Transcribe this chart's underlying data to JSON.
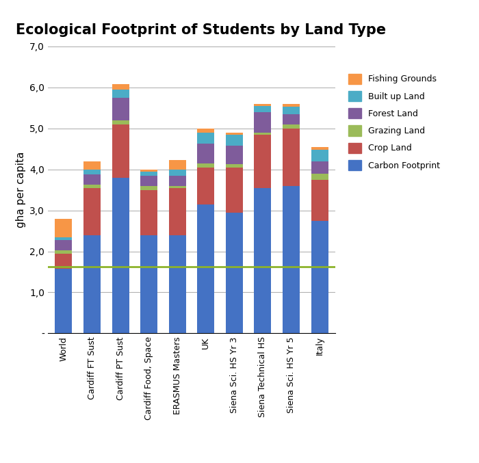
{
  "title": "Ecological Footprint of Students by Land Type",
  "ylabel": "gha per capita",
  "categories": [
    "World",
    "Cardiff FT Sust",
    "Cardiff PT Sust",
    "Cardiff Food, Space",
    "ERASMUS Masters",
    "UK",
    "Siena Sci. HS Yr 3",
    "Siena Technical HS",
    "Siena Sci. HS Yr 5",
    "Italy"
  ],
  "series": {
    "Carbon Footprint": [
      1.58,
      2.4,
      3.8,
      2.4,
      2.4,
      3.15,
      2.95,
      3.55,
      3.6,
      2.75
    ],
    "Crop Land": [
      0.37,
      1.15,
      1.3,
      1.1,
      1.15,
      0.9,
      1.1,
      1.3,
      1.4,
      1.0
    ],
    "Grazing Land": [
      0.07,
      0.07,
      0.1,
      0.1,
      0.05,
      0.1,
      0.08,
      0.05,
      0.1,
      0.15
    ],
    "Forest Land": [
      0.25,
      0.25,
      0.55,
      0.25,
      0.25,
      0.48,
      0.45,
      0.5,
      0.25,
      0.3
    ],
    "Built up Land": [
      0.08,
      0.13,
      0.2,
      0.1,
      0.15,
      0.27,
      0.27,
      0.15,
      0.18,
      0.27
    ],
    "Fishing Grounds": [
      0.45,
      0.2,
      0.12,
      0.05,
      0.22,
      0.1,
      0.05,
      0.05,
      0.06,
      0.08
    ]
  },
  "colors": {
    "Carbon Footprint": "#4472C4",
    "Crop Land": "#C0504D",
    "Grazing Land": "#9BBB59",
    "Forest Land": "#7F5C9B",
    "Built up Land": "#4BACC6",
    "Fishing Grounds": "#F79646"
  },
  "ylim": [
    0,
    7.0
  ],
  "yticks": [
    0.0,
    1.0,
    2.0,
    3.0,
    4.0,
    5.0,
    6.0,
    7.0
  ],
  "ytick_labels": [
    "-",
    "1,0",
    "2,0",
    "3,0",
    "4,0",
    "5,0",
    "6,0",
    "7,0"
  ],
  "hline_y": 1.63,
  "hline_color": "#8DB32A",
  "background_color": "#FFFFFF",
  "title_fontsize": 15,
  "legend_order": [
    "Fishing Grounds",
    "Built up Land",
    "Forest Land",
    "Grazing Land",
    "Crop Land",
    "Carbon Footprint"
  ]
}
